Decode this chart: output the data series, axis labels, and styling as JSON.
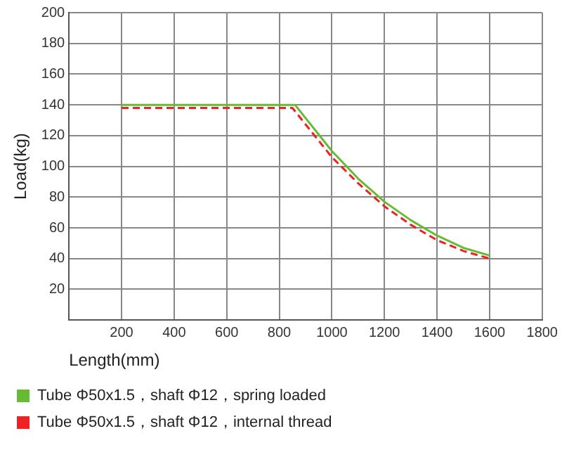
{
  "chart_data": {
    "type": "line",
    "xlabel": "Length(mm)",
    "ylabel": "Load(kg)",
    "xlim": [
      0,
      1800
    ],
    "xticks": [
      {
        "value": 0,
        "label": null
      },
      200,
      400,
      600,
      800,
      1000,
      1200,
      1400,
      1600,
      1800
    ],
    "ylim": [
      0,
      200
    ],
    "yticks": [
      {
        "value": 0,
        "label": null
      },
      20,
      40,
      60,
      80,
      100,
      120,
      140,
      160,
      180,
      200
    ],
    "grid": true,
    "legend": "bottom",
    "marker": "none",
    "series": [
      {
        "name": "Tube Φ50x1.5，shaft Φ12，spring loaded",
        "color": "#66bb33",
        "line_style": "solid",
        "x": [
          200,
          860,
          1000,
          1100,
          1200,
          1300,
          1400,
          1500,
          1600
        ],
        "values": [
          140,
          140,
          110,
          92,
          77,
          65,
          55,
          47,
          42
        ]
      },
      {
        "name": "Tube Φ50x1.5，shaft Φ12，internal thread",
        "color": "#ee2222",
        "line_style": "dashed",
        "x": [
          200,
          850,
          1000,
          1100,
          1200,
          1300,
          1400,
          1500,
          1600
        ],
        "values": [
          138,
          138,
          106,
          89,
          74,
          62,
          52,
          45,
          40
        ]
      }
    ]
  }
}
